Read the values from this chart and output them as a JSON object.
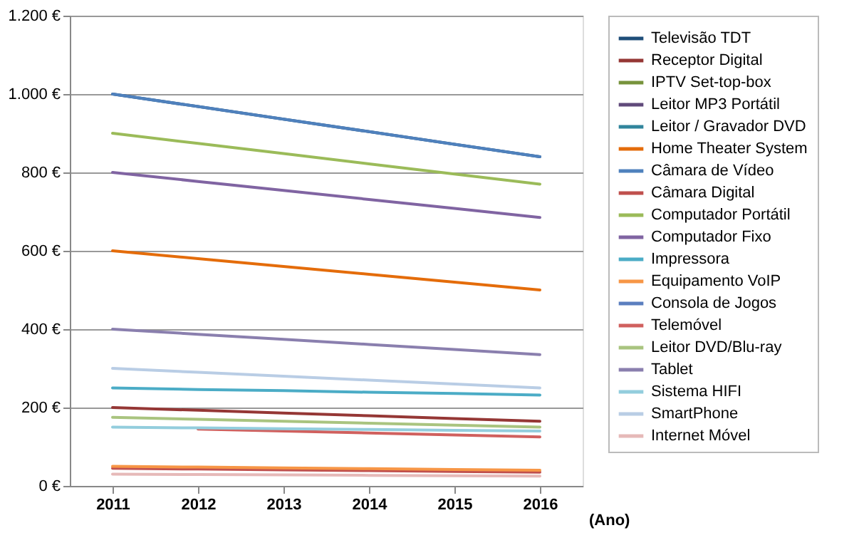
{
  "chart_data": {
    "type": "line",
    "xlabel": "(Ano)",
    "categories": [
      "2011",
      "2012",
      "2013",
      "2014",
      "2015",
      "2016"
    ],
    "ylim": [
      0,
      1200
    ],
    "yticks": [
      {
        "value": 0,
        "label": "0 €"
      },
      {
        "value": 200,
        "label": "200 €"
      },
      {
        "value": 400,
        "label": "400 €"
      },
      {
        "value": 600,
        "label": "600 €"
      },
      {
        "value": 800,
        "label": "800 €"
      },
      {
        "value": 1000,
        "label": "1.000 €"
      },
      {
        "value": 1200,
        "label": "1.200 €"
      }
    ],
    "grid": "y",
    "legend": "right",
    "marker": "none",
    "line_style": "solid",
    "series": [
      {
        "name": "Televisão TDT",
        "color": "#1f4e79",
        "values": [
          1000,
          968,
          936,
          904,
          872,
          840
        ]
      },
      {
        "name": "Receptor Digital",
        "color": "#953735",
        "values": [
          200,
          193,
          186,
          179,
          172,
          165
        ]
      },
      {
        "name": "IPTV Set-top-box",
        "color": "#77933c",
        "values": [
          null,
          null,
          null,
          null,
          null,
          null
        ]
      },
      {
        "name": "Leitor MP3 Portátil",
        "color": "#604a7b",
        "values": [
          null,
          null,
          null,
          null,
          null,
          null
        ]
      },
      {
        "name": "Leitor / Gravador DVD",
        "color": "#31859c",
        "values": [
          null,
          null,
          null,
          null,
          null,
          null
        ]
      },
      {
        "name": "Home Theater System",
        "color": "#e46c0a",
        "values": [
          600,
          580,
          560,
          540,
          520,
          500
        ]
      },
      {
        "name": "Câmara de Vídeo",
        "color": "#4f81bd",
        "values": [
          1000,
          968,
          936,
          904,
          872,
          840
        ]
      },
      {
        "name": "Câmara Digital",
        "color": "#c0504d",
        "values": [
          45,
          43,
          41,
          39,
          37,
          35
        ]
      },
      {
        "name": "Computador Portátil",
        "color": "#9bbb59",
        "values": [
          900,
          874,
          848,
          822,
          796,
          770
        ]
      },
      {
        "name": "Computador Fixo",
        "color": "#8064a2",
        "values": [
          800,
          777,
          754,
          731,
          708,
          685
        ]
      },
      {
        "name": "Impressora",
        "color": "#4bacc6",
        "values": [
          250,
          246,
          243,
          239,
          236,
          232
        ]
      },
      {
        "name": "Equipamento VoIP",
        "color": "#f79646",
        "values": [
          50,
          48,
          46,
          44,
          42,
          40
        ]
      },
      {
        "name": "Consola de Jogos",
        "color": "#5b7fbf",
        "values": [
          null,
          null,
          null,
          null,
          null,
          null
        ]
      },
      {
        "name": "Telemóvel",
        "color": "#d0605e",
        "values": [
          null,
          145,
          140,
          135,
          130,
          125
        ]
      },
      {
        "name": "Leitor DVD/Blu-ray",
        "color": "#a9c47f",
        "values": [
          175,
          170,
          165,
          160,
          155,
          150
        ]
      },
      {
        "name": "Tablet",
        "color": "#8a7fae",
        "values": [
          400,
          387,
          374,
          361,
          348,
          335
        ]
      },
      {
        "name": "Sistema HIFI",
        "color": "#93cddd",
        "values": [
          150,
          148,
          146,
          144,
          142,
          140
        ]
      },
      {
        "name": "SmartPhone",
        "color": "#b9cde5",
        "values": [
          300,
          290,
          280,
          270,
          260,
          250
        ]
      },
      {
        "name": "Internet Móvel",
        "color": "#e6b9b8",
        "values": [
          30,
          29,
          28,
          27,
          26,
          25
        ]
      }
    ]
  }
}
